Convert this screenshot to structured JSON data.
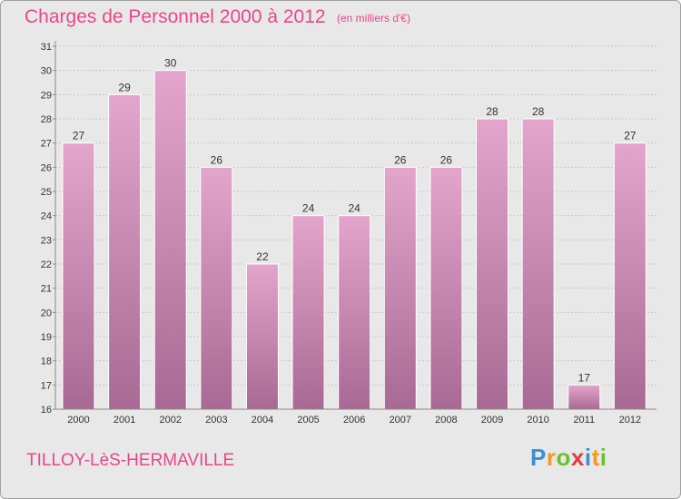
{
  "chart_data": {
    "type": "bar",
    "title": "Charges de Personnel 2000 à 2012",
    "subtitle": "(en milliers d'€)",
    "categories": [
      "2000",
      "2001",
      "2002",
      "2003",
      "2004",
      "2005",
      "2006",
      "2007",
      "2008",
      "2009",
      "2010",
      "2011",
      "2012"
    ],
    "values": [
      27,
      29,
      30,
      26,
      22,
      24,
      24,
      26,
      26,
      28,
      28,
      17,
      27
    ],
    "ylim": [
      16,
      31
    ],
    "yticks": [
      16,
      17,
      18,
      19,
      20,
      21,
      22,
      23,
      24,
      25,
      26,
      27,
      28,
      29,
      30,
      31
    ],
    "grid": true,
    "xlabel": "",
    "ylabel": ""
  },
  "colors": {
    "accent": "#e8468c",
    "bar_top": "#e4a5cc",
    "bar_bottom": "#a86a94",
    "background": "#e8e8e8"
  },
  "footer": {
    "commune": "TILLOY-LèS-HERMAVILLE"
  },
  "logo": {
    "letters": [
      "P",
      "r",
      "o",
      "x",
      "i",
      "t",
      "i"
    ],
    "colors": [
      "#3a8fd6",
      "#f29a1f",
      "#6cbf2f",
      "#e23b3b",
      "#3a8fd6",
      "#f29a1f",
      "#6cbf2f"
    ]
  }
}
